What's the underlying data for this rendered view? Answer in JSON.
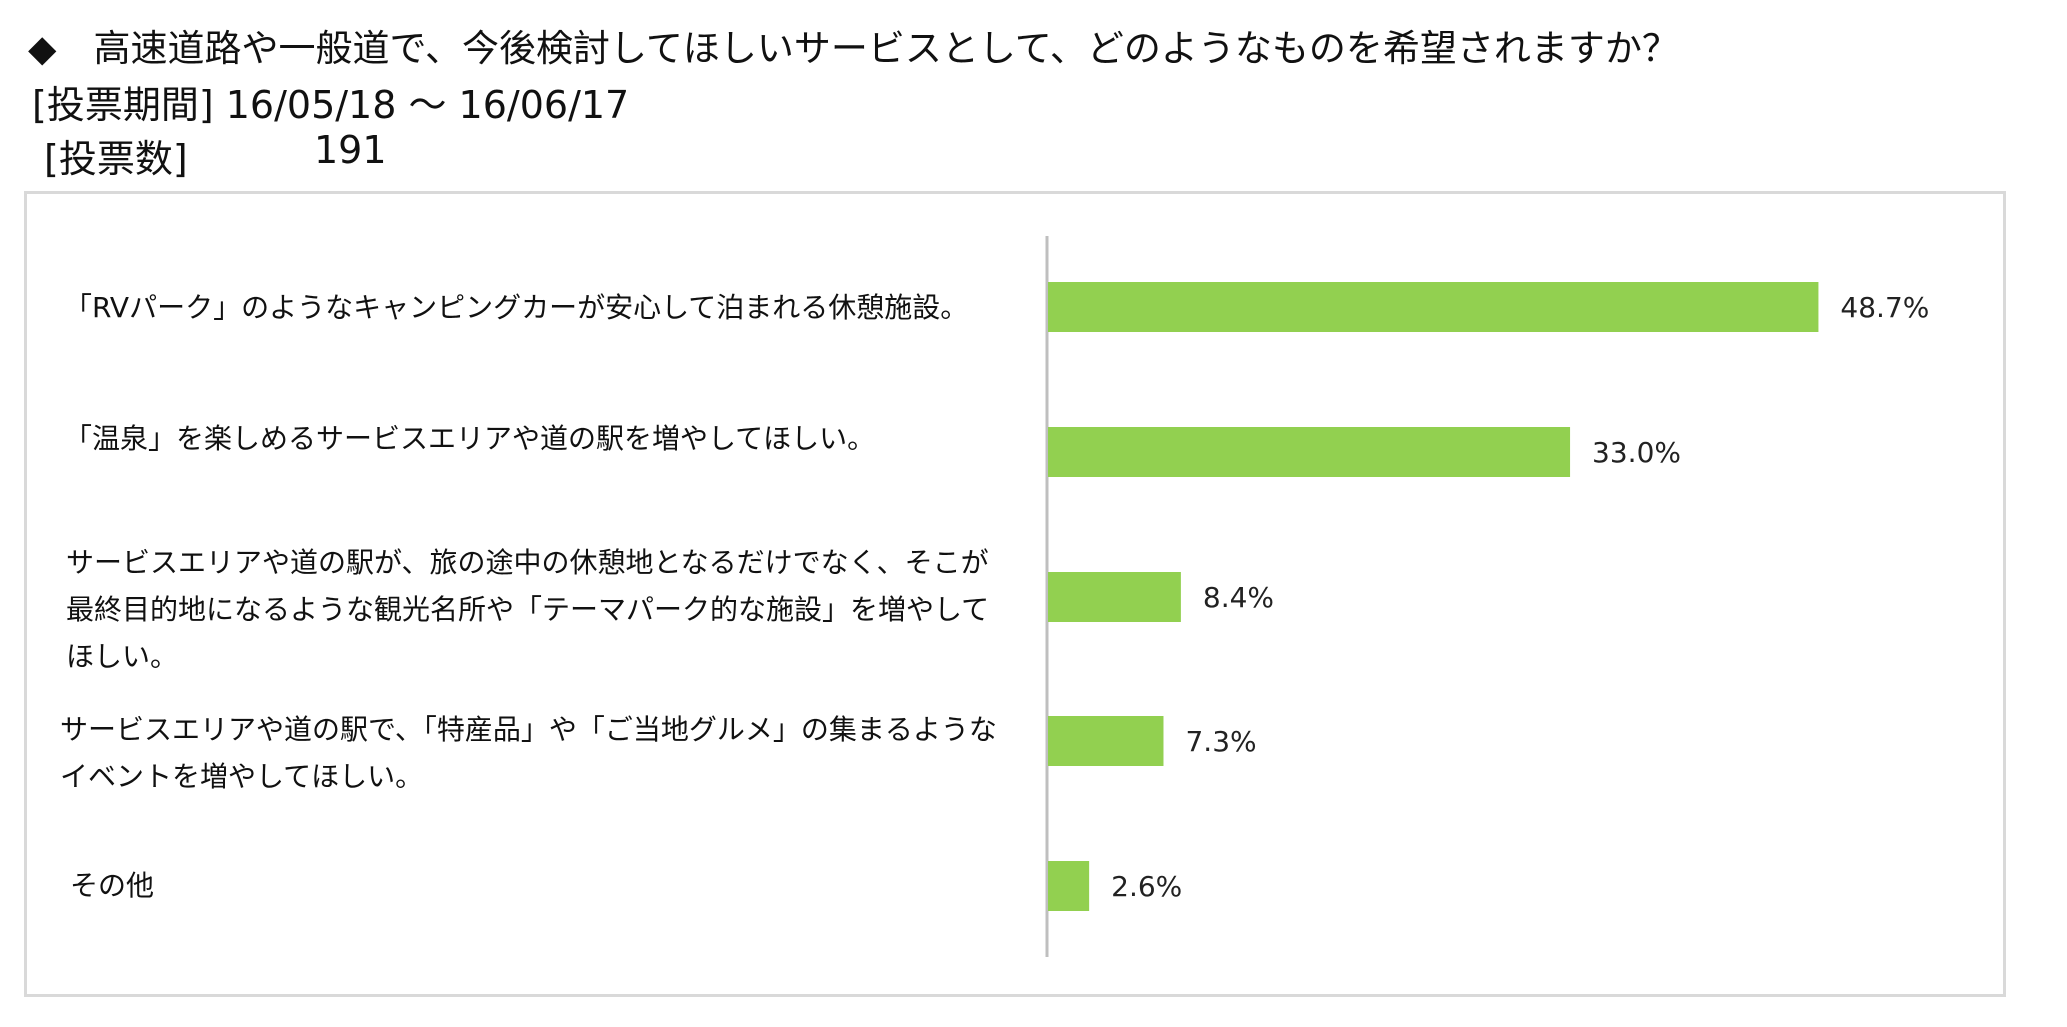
{
  "header": {
    "question": "◆　高速道路や一般道で、今後検討してほしいサービスとして、どのようなものを希望されますか？",
    "period": "[投票期間] 16/05/18 ～ 16/06/17",
    "votes_label": "[投票数]",
    "votes_value": "191"
  },
  "colors": {
    "bar": "#92d050",
    "axis": "#bfbfbf",
    "frame": "#d9d9d9"
  },
  "chart_data": {
    "type": "bar",
    "orientation": "horizontal",
    "categories": [
      "「RVパーク」のようなキャンピングカーが安心して泊まれる休憩施設。",
      "「温泉」を楽しめるサービスエリアや道の駅を増やしてほしい。",
      "サービスエリアや道の駅が、旅の途中の休憩地となるだけでなく、そこが最終目的地になるような観光名所や「テーマパーク的な施設」を増やしてほしい。",
      "サービスエリアや道の駅で、「特産品」や「ご当地グルメ」の集まるようなイベントを増やしてほしい。",
      "その他"
    ],
    "values": [
      48.7,
      33.0,
      8.4,
      7.3,
      2.6
    ],
    "value_labels": [
      "48.7%",
      "33.0%",
      "8.4%",
      "7.3%",
      "2.6%"
    ],
    "unit": "%",
    "grid": false,
    "legend": "none"
  }
}
